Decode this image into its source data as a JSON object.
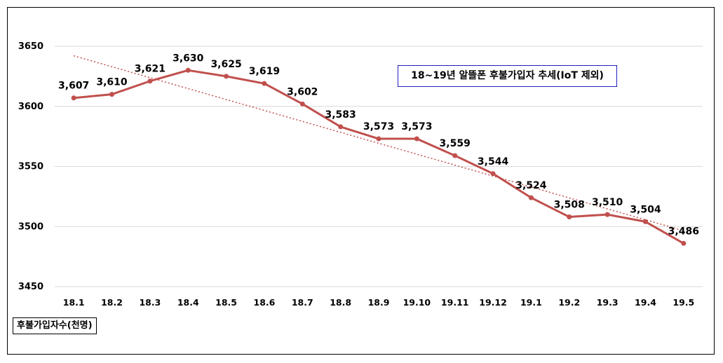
{
  "chart_data": {
    "type": "line",
    "title": "18~19년 알뜰폰 후불가입자 추세(IoT 제외)",
    "ylabel": "후불가입자수(천명)",
    "xlabel": "",
    "categories": [
      "18.1",
      "18.2",
      "18.3",
      "18.4",
      "18.5",
      "18.6",
      "18.7",
      "18.8",
      "18.9",
      "19.10",
      "19.11",
      "19.12",
      "19.1",
      "19.2",
      "19.3",
      "19.4",
      "19.5"
    ],
    "series": [
      {
        "name": "후불가입자수",
        "values": [
          3607,
          3610,
          3621,
          3630,
          3625,
          3619,
          3602,
          3583,
          3573,
          3573,
          3559,
          3544,
          3524,
          3508,
          3510,
          3504,
          3486
        ],
        "labels": [
          "3,607",
          "3,610",
          "3,621",
          "3,630",
          "3,625",
          "3,619",
          "3,602",
          "3,583",
          "3,573",
          "3,573",
          "3,559",
          "3,544",
          "3,524",
          "3,508",
          "3,510",
          "3,504",
          "3,486"
        ],
        "color": "#c0504d"
      }
    ],
    "trendline": {
      "type": "linear",
      "style": "dotted",
      "color": "#c0504d"
    },
    "ylim": [
      3450,
      3650
    ],
    "yticks": [
      3450,
      3500,
      3550,
      3600,
      3650
    ],
    "ytick_labels": [
      "3450",
      "3500",
      "3550",
      "3600",
      "3650"
    ],
    "grid": true
  },
  "colors": {
    "line": "#c0504d",
    "title_border": "#1f1fbf",
    "grid": "#d9d9d9"
  }
}
